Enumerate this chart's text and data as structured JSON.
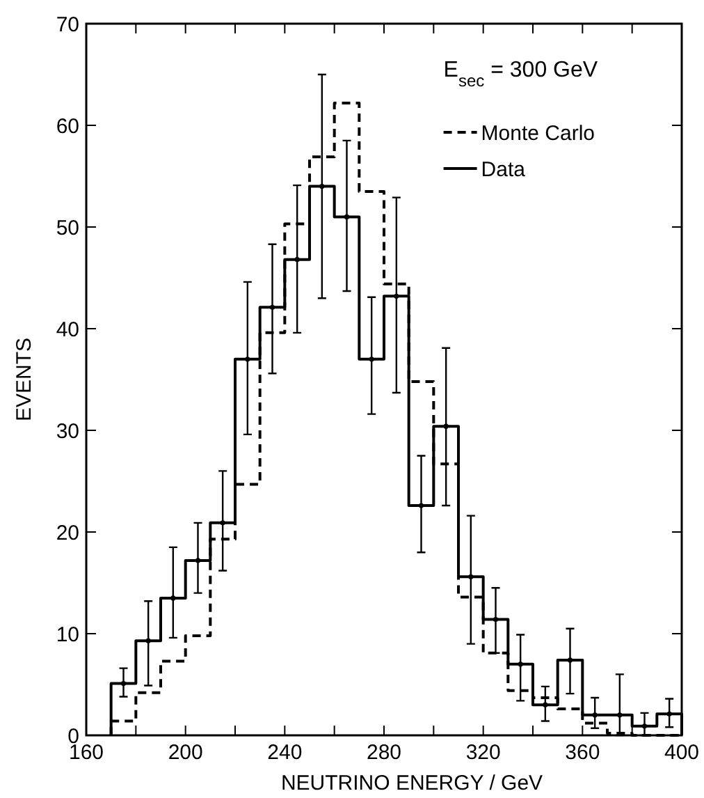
{
  "chart_data": {
    "type": "histogram",
    "xlabel": "NEUTRINO ENERGY / GeV",
    "ylabel": "EVENTS",
    "annotations": [
      "E$_{sec}$ = 300 GeV"
    ],
    "bins": [
      170,
      180,
      190,
      200,
      210,
      220,
      230,
      240,
      250,
      260,
      270,
      280,
      290,
      300,
      310,
      320,
      330,
      340,
      350,
      360,
      370,
      380,
      390,
      400
    ],
    "series": [
      {
        "name": "Monte Carlo",
        "color": "#000000",
        "line_style": "dashed",
        "values": [
          1.4,
          4.2,
          7.3,
          9.8,
          19.3,
          24.7,
          39.6,
          50.3,
          56.9,
          62.2,
          53.5,
          44.4,
          34.8,
          26.7,
          13.6,
          8.1,
          4.4,
          3.7,
          2.6,
          1.2,
          0.2,
          0,
          0
        ]
      },
      {
        "name": "Data",
        "color": "#000000",
        "line_style": "solid",
        "values": [
          5.1,
          9.3,
          13.5,
          17.2,
          20.9,
          37,
          42.1,
          46.8,
          54,
          51,
          37,
          43.2,
          22.6,
          30.4,
          15.6,
          11.4,
          7,
          3,
          7.4,
          2,
          2,
          0.9,
          2.1
        ]
      },
      {
        "type": "scatter",
        "color": "#000000",
        "marker": "circle",
        "x": [
          175,
          185,
          195,
          205,
          215,
          225,
          235,
          245,
          255,
          265,
          275,
          285,
          295,
          305,
          315,
          325,
          335,
          345,
          355,
          365,
          375,
          385,
          395
        ],
        "values": [
          5.1,
          9.3,
          13.5,
          17.2,
          20.9,
          37,
          42.1,
          46.8,
          54,
          51,
          37,
          43.2,
          22.6,
          30.4,
          15.6,
          11.4,
          7,
          3,
          7.4,
          2,
          2,
          0.9,
          2.1
        ],
        "errors": [
          [
            3.8,
            6.6
          ],
          [
            4.9,
            13.2
          ],
          [
            9.6,
            18.5
          ],
          [
            14,
            20.9
          ],
          [
            16.2,
            26
          ],
          [
            29.6,
            44.6
          ],
          [
            35.6,
            48.3
          ],
          [
            39.6,
            54.1
          ],
          [
            43,
            65
          ],
          [
            43.7,
            58.5
          ],
          [
            31.6,
            43.1
          ],
          [
            33.7,
            52.9
          ],
          [
            18,
            27.5
          ],
          [
            22.6,
            38.1
          ],
          [
            9,
            21.6
          ],
          [
            8.1,
            14.5
          ],
          [
            3.4,
            9.9
          ],
          [
            1.4,
            4.8
          ],
          [
            4.1,
            10.5
          ],
          [
            0.7,
            3.7
          ],
          [
            0,
            6
          ],
          [
            0,
            2.2
          ],
          [
            0.8,
            3.6
          ]
        ]
      }
    ],
    "xlim": [
      160,
      400
    ],
    "xticks": [
      160,
      {
        "value": 180,
        "label": null
      },
      200,
      {
        "value": 220,
        "label": null
      },
      240,
      {
        "value": 260,
        "label": null
      },
      280,
      {
        "value": 300,
        "label": null
      },
      320,
      {
        "value": 340,
        "label": null
      },
      360,
      {
        "value": 380,
        "label": null
      },
      400
    ],
    "ylim": [
      0,
      70
    ],
    "yticks": [
      0,
      10,
      20,
      30,
      40,
      50,
      60,
      70
    ],
    "legend": "top right"
  }
}
